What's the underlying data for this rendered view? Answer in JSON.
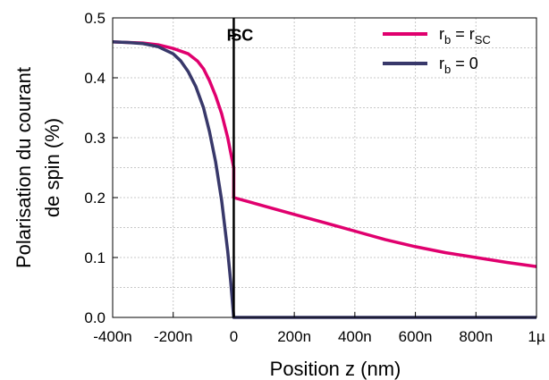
{
  "chart_data": {
    "type": "line",
    "xlabel": "Position z (nm)",
    "ylabel_line1": "Polarisation du courant",
    "ylabel_line2": "de spin (%)",
    "xlim": [
      -400,
      1000
    ],
    "ylim": [
      0,
      0.5
    ],
    "x_ticks": [
      {
        "value": -400,
        "label": "-400n"
      },
      {
        "value": -200,
        "label": "-200n"
      },
      {
        "value": 0,
        "label": "0"
      },
      {
        "value": 200,
        "label": "200n"
      },
      {
        "value": 400,
        "label": "400n"
      },
      {
        "value": 600,
        "label": "600n"
      },
      {
        "value": 800,
        "label": "800n"
      },
      {
        "value": 1000,
        "label": "1µ"
      }
    ],
    "y_ticks": [
      {
        "value": 0,
        "label": "0.0"
      },
      {
        "value": 0.1,
        "label": "0.1"
      },
      {
        "value": 0.2,
        "label": "0.2"
      },
      {
        "value": 0.3,
        "label": "0.3"
      },
      {
        "value": 0.4,
        "label": "0.4"
      },
      {
        "value": 0.5,
        "label": "0.5"
      }
    ],
    "grid": true,
    "annotations": [
      {
        "text": "F",
        "x": -20,
        "y": 0.462
      },
      {
        "text": "SC",
        "x": 20,
        "y": 0.462
      }
    ],
    "interface_x": 0,
    "legend_position": "top-right",
    "series": [
      {
        "legend": {
          "main": "r",
          "sub": "b",
          "eq": " = r",
          "sub2": "SC"
        },
        "color": "#e0006e",
        "x": [
          -400,
          -350,
          -300,
          -250,
          -200,
          -150,
          -120,
          -100,
          -80,
          -60,
          -40,
          -20,
          -10,
          0,
          0,
          50,
          100,
          200,
          300,
          400,
          500,
          600,
          700,
          800,
          900,
          1000
        ],
        "y": [
          0.46,
          0.459,
          0.458,
          0.455,
          0.449,
          0.44,
          0.428,
          0.415,
          0.395,
          0.37,
          0.34,
          0.3,
          0.275,
          0.25,
          0.2,
          0.193,
          0.186,
          0.172,
          0.158,
          0.144,
          0.13,
          0.118,
          0.108,
          0.1,
          0.092,
          0.085
        ]
      },
      {
        "legend": {
          "main": "r",
          "sub": "b",
          "eq": " = 0",
          "sub2": ""
        },
        "color": "#38386a",
        "x": [
          -400,
          -350,
          -300,
          -250,
          -200,
          -175,
          -150,
          -125,
          -100,
          -80,
          -60,
          -40,
          -20,
          -10,
          0,
          0,
          200,
          400,
          600,
          800,
          1000
        ],
        "y": [
          0.46,
          0.459,
          0.457,
          0.452,
          0.44,
          0.428,
          0.41,
          0.385,
          0.35,
          0.31,
          0.26,
          0.195,
          0.11,
          0.06,
          0.0,
          0.0,
          0.0,
          0.0,
          0.0,
          0.0,
          0.0
        ]
      }
    ]
  }
}
